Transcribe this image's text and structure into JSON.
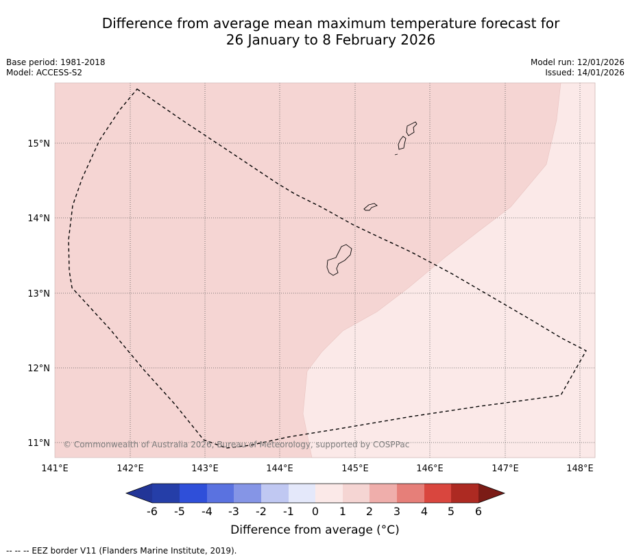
{
  "title": {
    "line1": "Difference from average mean maximum temperature forecast for",
    "line2": "26 January to 8 February 2026"
  },
  "meta": {
    "base_period": "Base period: 1981-2018",
    "model": "Model: ACCESS-S2",
    "model_run": "Model run: 12/01/2026",
    "issued": "Issued: 14/01/2026"
  },
  "map": {
    "lon_ticks": [
      "141°E",
      "142°E",
      "143°E",
      "144°E",
      "145°E",
      "146°E",
      "147°E",
      "148°E"
    ],
    "lat_ticks": [
      "11°N",
      "12°N",
      "13°N",
      "14°N",
      "15°N"
    ],
    "lon_values": [
      141,
      142,
      143,
      144,
      145,
      146,
      147,
      148
    ],
    "lat_values": [
      11,
      12,
      13,
      14,
      15
    ],
    "extent": {
      "lon_min": 141,
      "lon_max": 148.2,
      "lat_min": 10.8,
      "lat_max": 15.8
    },
    "copyright": "© Commonwealth of Australia 2026, Bureau of Meteorology, supported by COSPPac",
    "fill_colors": {
      "zone_1_to_2": "#f5d5d3",
      "zone_0_to_1": "#fbe9e8"
    }
  },
  "colorbar": {
    "ticks": [
      "-6",
      "-5",
      "-4",
      "-3",
      "-2",
      "-1",
      "0",
      "1",
      "2",
      "3",
      "4",
      "5",
      "6"
    ],
    "colors": [
      "#223597",
      "#253ea8",
      "#2f4fd9",
      "#5a72e0",
      "#8595e6",
      "#c0c8f2",
      "#e4e8fa",
      "#fbe9e8",
      "#f5d5d3",
      "#efaeab",
      "#e67f79",
      "#d9463e",
      "#ad2a22",
      "#7b1b16"
    ],
    "label": "Difference from average (°C)"
  },
  "footnote": "--  --  -- EEZ border V11 (Flanders Marine Institute, 2019)."
}
